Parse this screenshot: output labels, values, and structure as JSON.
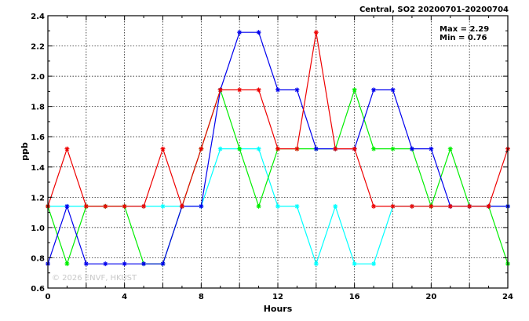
{
  "header": {
    "title": "Central, SO2 20200701-20200704"
  },
  "stats": {
    "max_label": "Max = 2.29",
    "min_label": "Min = 0.76"
  },
  "watermark": "© 2026 ENVF, HKUST",
  "chart_data": {
    "type": "line",
    "title": "Central, SO2 20200701-20200704",
    "xlabel": "Hours",
    "ylabel": "ppb",
    "xlim": [
      0,
      24
    ],
    "ylim": [
      0.6,
      2.4
    ],
    "xticks": [
      0,
      4,
      8,
      12,
      16,
      20,
      24
    ],
    "yticks": [
      0.6,
      0.8,
      1.0,
      1.2,
      1.4,
      1.6,
      1.8,
      2.0,
      2.2,
      2.4
    ],
    "ytick_labels": [
      "0.6",
      "0.8",
      "1.0",
      "1.2",
      "1.4",
      "1.6",
      "1.8",
      "2.0",
      "2.2",
      "2.4"
    ],
    "grid": true,
    "marker": "asterisk",
    "series": [
      {
        "color": "#00ffff",
        "x": [
          0,
          1,
          2,
          3,
          4,
          5,
          6,
          7,
          8,
          9,
          10,
          11,
          12,
          13,
          14,
          15,
          16,
          17,
          18,
          19,
          20,
          21,
          22,
          23,
          24
        ],
        "y": [
          1.14,
          1.14,
          1.14,
          1.14,
          1.14,
          1.14,
          1.14,
          1.14,
          1.14,
          1.52,
          1.52,
          1.52,
          1.14,
          1.14,
          0.76,
          1.14,
          0.76,
          0.76,
          1.14,
          1.14,
          1.14,
          1.14,
          1.14,
          1.14,
          1.14
        ]
      },
      {
        "color": "#00ee00",
        "x": [
          0,
          1,
          2,
          3,
          4,
          5,
          6,
          7,
          8,
          9,
          10,
          11,
          12,
          13,
          14,
          15,
          16,
          17,
          18,
          19,
          20,
          21,
          22,
          23,
          24
        ],
        "y": [
          1.14,
          0.76,
          1.14,
          1.14,
          1.14,
          0.76,
          0.76,
          1.14,
          1.52,
          1.91,
          1.52,
          1.14,
          1.52,
          1.52,
          1.52,
          1.52,
          1.91,
          1.52,
          1.52,
          1.52,
          1.14,
          1.52,
          1.14,
          1.14,
          0.76
        ]
      },
      {
        "color": "#0000ee",
        "x": [
          0,
          1,
          2,
          3,
          4,
          5,
          6,
          7,
          8,
          9,
          10,
          11,
          12,
          13,
          14,
          15,
          16,
          17,
          18,
          19,
          20,
          21,
          22,
          23,
          24
        ],
        "y": [
          0.76,
          1.14,
          0.76,
          0.76,
          0.76,
          0.76,
          0.76,
          1.14,
          1.14,
          1.91,
          2.29,
          2.29,
          1.91,
          1.91,
          1.52,
          1.52,
          1.52,
          1.91,
          1.91,
          1.52,
          1.52,
          1.14,
          1.14,
          1.14,
          1.14
        ]
      },
      {
        "color": "#ee0000",
        "x": [
          0,
          1,
          2,
          3,
          4,
          5,
          6,
          7,
          8,
          9,
          10,
          11,
          12,
          13,
          14,
          15,
          16,
          17,
          18,
          19,
          20,
          21,
          22,
          23,
          24
        ],
        "y": [
          1.14,
          1.52,
          1.14,
          1.14,
          1.14,
          1.14,
          1.52,
          1.14,
          1.52,
          1.91,
          1.91,
          1.91,
          1.52,
          1.52,
          2.29,
          1.52,
          1.52,
          1.14,
          1.14,
          1.14,
          1.14,
          1.14,
          1.14,
          1.14,
          1.52
        ]
      }
    ]
  }
}
